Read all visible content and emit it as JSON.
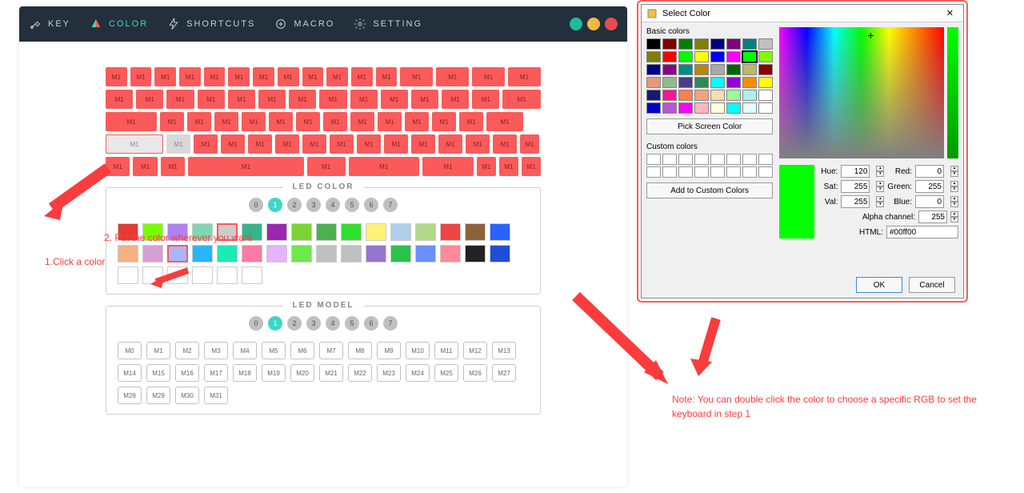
{
  "nav": {
    "items": [
      {
        "label": "KEY"
      },
      {
        "label": "COLOR"
      },
      {
        "label": "SHORTCUTS"
      },
      {
        "label": "MACRO"
      },
      {
        "label": "SETTING"
      }
    ],
    "active_index": 1,
    "win_colors": [
      "#1abc9c",
      "#f5b942",
      "#e94b4b"
    ]
  },
  "keyboard": {
    "key_label": "M1",
    "key_color": "#fa5a5a",
    "rows": [
      [
        30,
        30,
        30,
        30,
        30,
        30,
        30,
        30,
        30,
        30,
        30,
        30,
        46,
        46,
        46,
        46
      ],
      [
        46,
        46,
        46,
        46,
        46,
        46,
        46,
        46,
        46,
        46,
        46,
        46,
        46,
        64
      ],
      [
        64,
        30,
        30,
        30,
        30,
        30,
        30,
        30,
        30,
        30,
        30,
        30,
        30,
        46
      ],
      [
        72,
        30,
        30,
        30,
        30,
        30,
        30,
        30,
        30,
        30,
        30,
        30,
        30,
        30,
        24
      ],
      [
        38,
        38,
        38,
        180,
        60,
        110,
        80,
        30,
        30,
        30
      ]
    ],
    "white_cells": [
      [
        3,
        0
      ],
      [
        3,
        1
      ]
    ]
  },
  "annotations": {
    "step1": "1.Click a color",
    "step2": "2. Put the color wherever you want",
    "note": "Note: You can double click the color to choose a specific RGB to set the keyboard in step 1"
  },
  "led_color": {
    "title": "LED COLOR",
    "numbers": [
      "0",
      "1",
      "2",
      "3",
      "4",
      "5",
      "6",
      "7"
    ],
    "selected_num": 1,
    "swatches_row1": [
      "#e53935",
      "#7cfc00",
      "#b182f0",
      "#7fd6b0",
      "#cccccc",
      "#34b48a",
      "#9c27b0",
      "#7bd432",
      "#4caf50",
      "#2fdf2f",
      "#fff176",
      "#b0cfe8",
      "#b3d88b",
      "#ef4444",
      "#8c6239",
      "#2962ff",
      "#f4b183",
      "#d69fd6",
      "#aab6fe"
    ],
    "selected_row1": 4,
    "highlight_row1": 18,
    "swatches_row2": [
      "#29b6f6",
      "#1de9b6",
      "#ff7aa2",
      "#e6b3ff",
      "#6ee84e",
      "#c0c0c0",
      "#c0c0c0",
      "#9575cd",
      "#29c24a",
      "#6a90ff",
      "#ff8a9a",
      "#222222",
      "#1f4ed8",
      "#ffffff",
      "#ffffff",
      "#ffffff",
      "#ffffff",
      "#ffffff",
      "#ffffff"
    ]
  },
  "led_model": {
    "title": "LED MODEL",
    "numbers": [
      "0",
      "1",
      "2",
      "3",
      "4",
      "5",
      "6",
      "7"
    ],
    "selected_num": 1,
    "buttons": [
      "M0",
      "M1",
      "M2",
      "M3",
      "M4",
      "M5",
      "M6",
      "M7",
      "M8",
      "M9",
      "M10",
      "M11",
      "M12",
      "M13",
      "M14",
      "M15",
      "M16",
      "M17",
      "M18",
      "M19",
      "M20",
      "M21",
      "M22",
      "M23",
      "M24",
      "M25",
      "M26",
      "M27",
      "M28",
      "M29",
      "M30",
      "M31"
    ]
  },
  "dialog": {
    "title": "Select Color",
    "basic_label": "Basic colors",
    "basic_colors": [
      "#000000",
      "#800000",
      "#008000",
      "#808000",
      "#000080",
      "#800080",
      "#008080",
      "#c0c0c0",
      "#808000",
      "#ff0000",
      "#00ff00",
      "#ffff00",
      "#0000ff",
      "#ff00ff",
      "#00ff00",
      "#7fff00",
      "#00008b",
      "#8b008b",
      "#008b8b",
      "#b8860b",
      "#a9a9a9",
      "#006400",
      "#bdb76b",
      "#8b0000",
      "#e9967a",
      "#8fbc8f",
      "#483d8b",
      "#2e8b57",
      "#00ffff",
      "#9400d3",
      "#ff8c00",
      "#ffff00",
      "#191970",
      "#ff1493",
      "#ff7f50",
      "#ffa07a",
      "#f5deb3",
      "#98fb98",
      "#afeeee",
      "#ffffff",
      "#0000cd",
      "#ba55d3",
      "#ff00ff",
      "#ffb6c1",
      "#ffffe0",
      "#00ffff",
      "#e0ffff",
      "#ffffff"
    ],
    "basic_selected": 14,
    "pick_screen": "Pick Screen Color",
    "custom_label": "Custom colors",
    "custom_count": 16,
    "add_custom": "Add to Custom Colors",
    "preview_color": "#00ff00",
    "fields": {
      "hue_label": "Hue:",
      "hue": "120",
      "sat_label": "Sat:",
      "sat": "255",
      "val_label": "Val:",
      "val": "255",
      "red_label": "Red:",
      "red": "0",
      "green_label": "Green:",
      "green": "255",
      "blue_label": "Blue:",
      "blue": "0",
      "alpha_label": "Alpha channel:",
      "alpha": "255",
      "html_label": "HTML:",
      "html": "#00ff00"
    },
    "ok": "OK",
    "cancel": "Cancel"
  }
}
